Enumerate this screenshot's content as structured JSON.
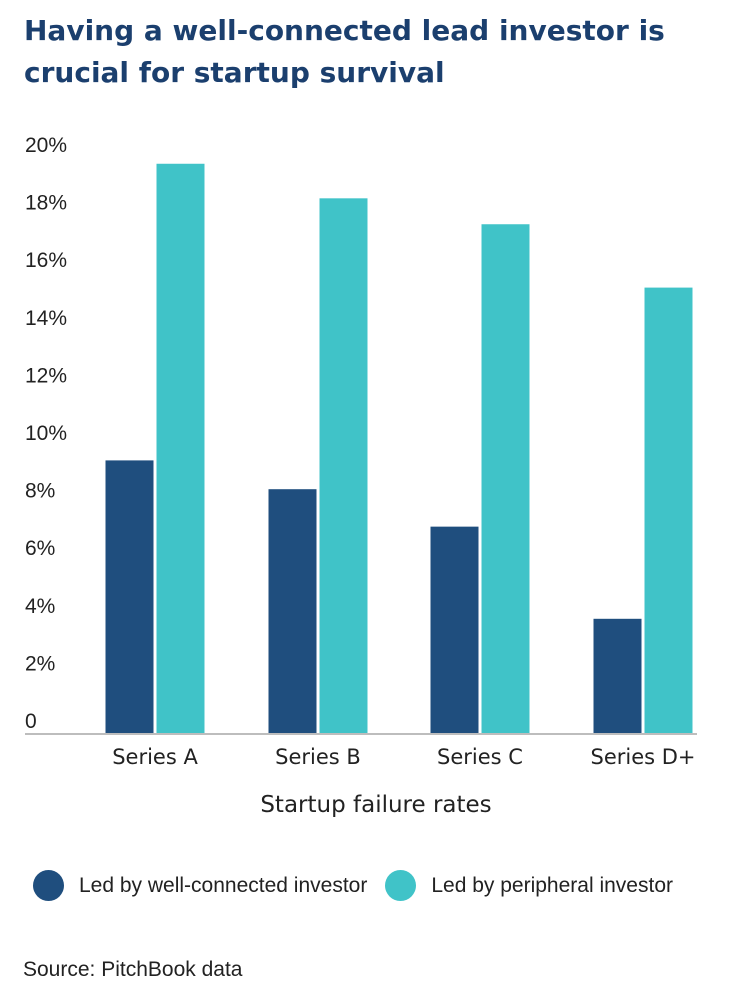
{
  "chart_data": {
    "type": "bar",
    "title": "Having a well-connected lead investor is crucial for startup survival",
    "xlabel": "Startup failure rates",
    "ylabel": "",
    "categories": [
      "Series A",
      "Series B",
      "Series C",
      "Series D+"
    ],
    "series": [
      {
        "name": "Led by well-connected investor",
        "color": "#1f4e7e",
        "values": [
          9.5,
          8.5,
          7.2,
          4.0
        ]
      },
      {
        "name": "Led by peripheral investor",
        "color": "#40c3c8",
        "values": [
          19.8,
          18.6,
          17.7,
          15.5
        ]
      }
    ],
    "ylim": [
      0,
      20
    ],
    "yticks": [
      "0",
      "2%",
      "4%",
      "6%",
      "8%",
      "10%",
      "12%",
      "14%",
      "16%",
      "18%",
      "20%"
    ],
    "grid": false,
    "legend": "bottom",
    "source": "Source: PitchBook data"
  }
}
